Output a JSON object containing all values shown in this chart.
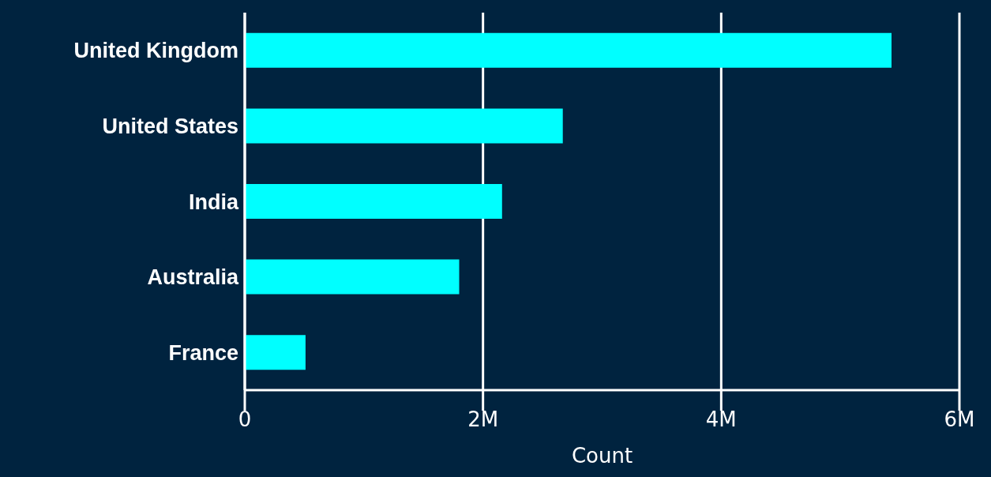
{
  "chart_data": {
    "type": "bar",
    "orientation": "horizontal",
    "xlabel": "Count",
    "categories": [
      "United Kingdom",
      "United States",
      "India",
      "Australia",
      "France"
    ],
    "values": [
      5430000,
      2670000,
      2160000,
      1800000,
      510000
    ],
    "color": "#00ffff",
    "xlim": [
      0,
      6000000
    ],
    "xticks": [
      {
        "value": 0,
        "label": "0"
      },
      {
        "value": 2000000,
        "label": "2M"
      },
      {
        "value": 4000000,
        "label": "4M"
      },
      {
        "value": 6000000,
        "label": "6M"
      }
    ],
    "grid": "x"
  }
}
